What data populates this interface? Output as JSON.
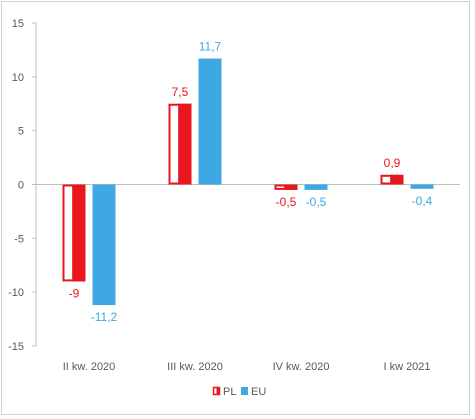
{
  "chart_data": {
    "type": "bar",
    "categories": [
      "II kw. 2020",
      "III kw. 2020",
      "IV kw. 2020",
      "I kw 2021"
    ],
    "series": [
      {
        "name": "PL",
        "values": [
          -9,
          7.5,
          -0.5,
          0.9
        ],
        "labels": [
          "-9",
          "7,5",
          "-0,5",
          "0,9"
        ],
        "color": "#e8161e"
      },
      {
        "name": "EU",
        "values": [
          -11.2,
          11.7,
          -0.5,
          -0.4
        ],
        "labels": [
          "-11,2",
          "11,7",
          "-0,5",
          "-0,4"
        ],
        "color": "#3ea8e4"
      }
    ],
    "yticks": [
      15,
      10,
      5,
      0,
      -5,
      -10,
      -15
    ],
    "ytick_labels": [
      "15",
      "10",
      "5",
      "0",
      "-5",
      "-10",
      "-15"
    ],
    "ylim": [
      -15,
      15
    ],
    "grid": false,
    "legend_position": "bottom-center"
  }
}
